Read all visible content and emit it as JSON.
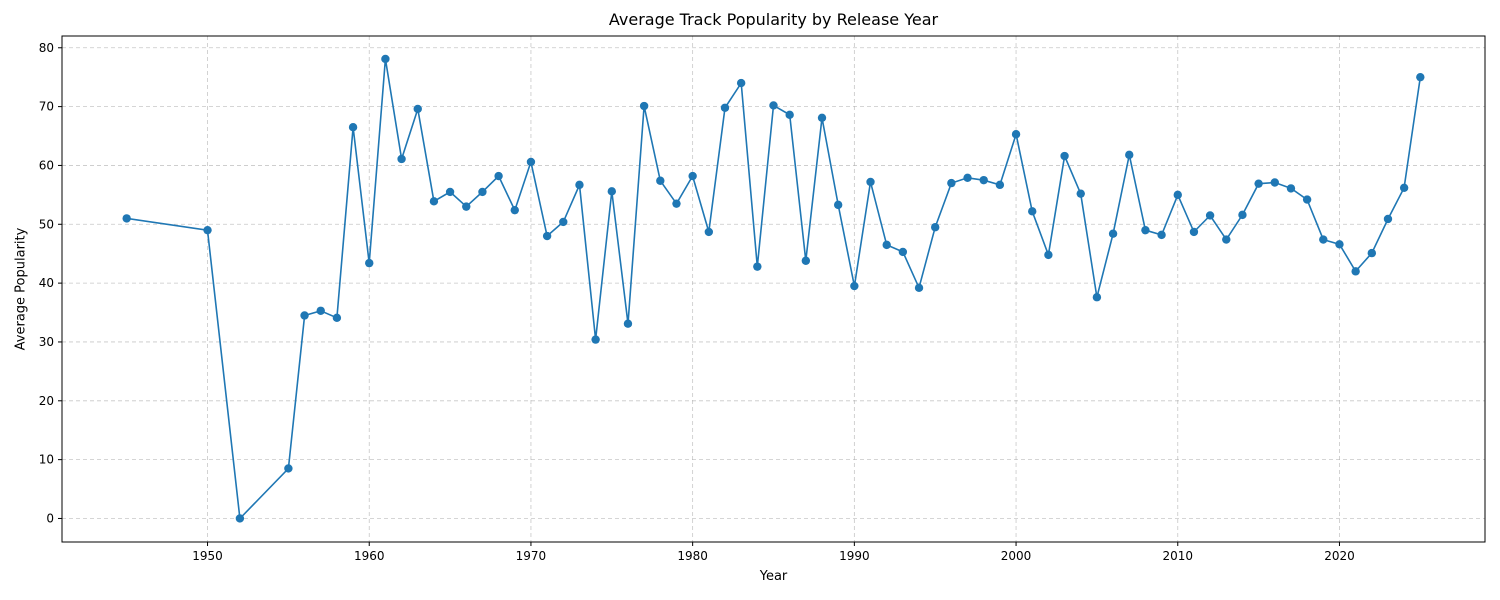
{
  "chart_data": {
    "type": "line",
    "title": "Average Track Popularity by Release Year",
    "xlabel": "Year",
    "ylabel": "Average Popularity",
    "xlim": [
      1941,
      2029
    ],
    "ylim": [
      -4,
      82
    ],
    "xticks": [
      1950,
      1960,
      1970,
      1980,
      1990,
      2000,
      2010,
      2020
    ],
    "yticks": [
      0,
      10,
      20,
      30,
      40,
      50,
      60,
      70,
      80
    ],
    "grid": true,
    "marker": "circle",
    "color": "#1f77b4",
    "series": [
      {
        "x": [
          1945,
          1950,
          1952,
          1955,
          1956,
          1957,
          1958,
          1959,
          1960,
          1961,
          1962,
          1963,
          1964,
          1965,
          1966,
          1967,
          1968,
          1969,
          1970,
          1971,
          1972,
          1973,
          1974,
          1975,
          1976,
          1977,
          1978,
          1979,
          1980,
          1981,
          1982,
          1983,
          1984,
          1985,
          1986,
          1987,
          1988,
          1989,
          1990,
          1991,
          1992,
          1993,
          1994,
          1995,
          1996,
          1997,
          1998,
          1999,
          2000,
          2001,
          2002,
          2003,
          2004,
          2005,
          2006,
          2007,
          2008,
          2009,
          2010,
          2011,
          2012,
          2013,
          2014,
          2015,
          2016,
          2017,
          2018,
          2019,
          2020,
          2021,
          2022,
          2023,
          2024,
          2025
        ],
        "y": [
          51,
          49,
          0,
          8.5,
          34.5,
          35.3,
          34.1,
          66.5,
          43.4,
          78.1,
          61.1,
          69.6,
          53.9,
          55.5,
          53,
          55.5,
          58.2,
          52.4,
          60.6,
          48,
          50.4,
          56.7,
          30.4,
          55.6,
          33.1,
          70.1,
          57.4,
          53.5,
          58.2,
          48.7,
          69.8,
          74,
          42.8,
          70.2,
          68.6,
          43.8,
          68.1,
          53.3,
          39.5,
          57.2,
          46.5,
          45.3,
          39.2,
          49.5,
          57,
          57.9,
          57.5,
          56.7,
          65.3,
          52.2,
          44.8,
          61.6,
          55.2,
          37.6,
          48.4,
          61.8,
          49,
          48.2,
          55,
          48.7,
          51.5,
          47.4,
          51.6,
          56.9,
          57.1,
          56.1,
          54.2,
          47.4,
          46.6,
          42,
          45.1,
          50.9,
          56.2,
          75
        ]
      }
    ]
  }
}
